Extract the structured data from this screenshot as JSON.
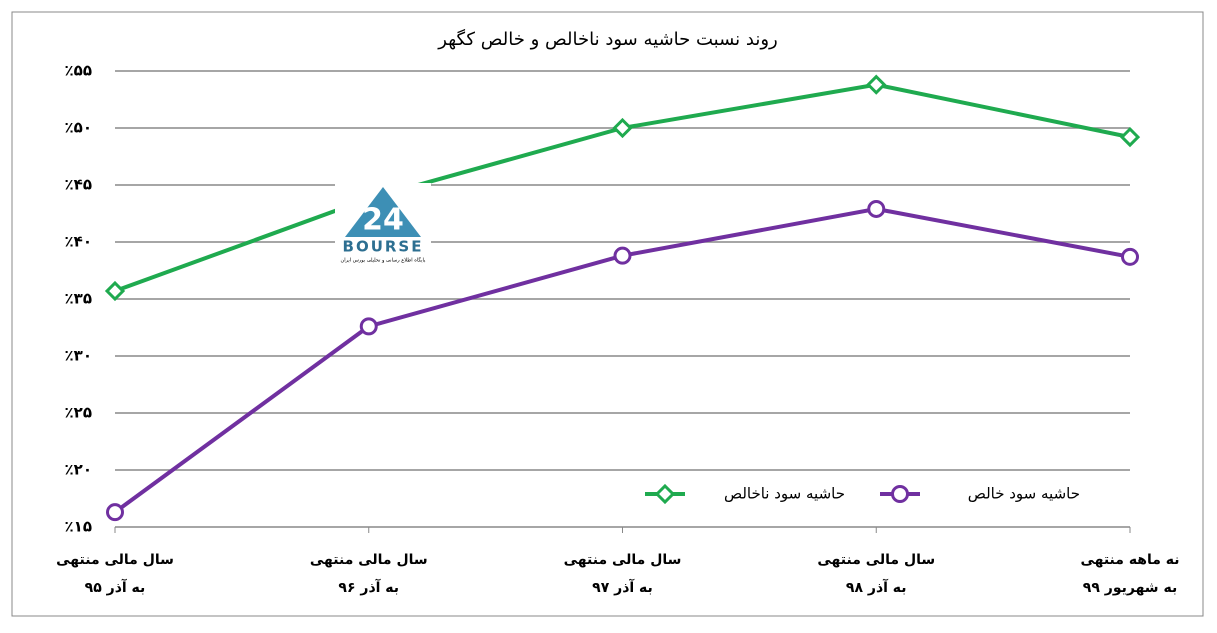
{
  "chart_data": {
    "type": "line",
    "title": "روند نسبت حاشیه سود ناخالص و خالص کگهر",
    "categories": [
      [
        "سال مالی منتهی",
        "به آذر ۹۵"
      ],
      [
        "سال مالی منتهی",
        "به آذر ۹۶"
      ],
      [
        "سال مالی منتهی",
        "به آذر ۹۷"
      ],
      [
        "سال مالی منتهی",
        "به آذر ۹۸"
      ],
      [
        "نه ماهه منتهی",
        "به شهریور ۹۹"
      ]
    ],
    "series": [
      {
        "name": "حاشیه سود ناخالص",
        "color": "#1faa4f",
        "marker": "diamond",
        "values": [
          35.7,
          43.8,
          50.0,
          53.8,
          49.2
        ]
      },
      {
        "name": "حاشیه سود خالص",
        "color": "#7030a0",
        "marker": "circle",
        "values": [
          16.3,
          32.6,
          38.8,
          42.9,
          38.7
        ]
      }
    ],
    "ylim": [
      15,
      55
    ],
    "yticks": [
      {
        "value": 15,
        "label": "٪۱۵"
      },
      {
        "value": 20,
        "label": "٪۲۰"
      },
      {
        "value": 25,
        "label": "٪۲۵"
      },
      {
        "value": 30,
        "label": "٪۳۰"
      },
      {
        "value": 35,
        "label": "٪۳۵"
      },
      {
        "value": 40,
        "label": "٪۴۰"
      },
      {
        "value": 45,
        "label": "٪۴۵"
      },
      {
        "value": 50,
        "label": "٪۵۰"
      },
      {
        "value": 55,
        "label": "٪۵۵"
      }
    ],
    "grid": true,
    "watermark": {
      "number": "24",
      "name": "BOURSE",
      "caption": "پایگاه اطلاع رسانی و تحلیلی بورس ایران"
    }
  }
}
